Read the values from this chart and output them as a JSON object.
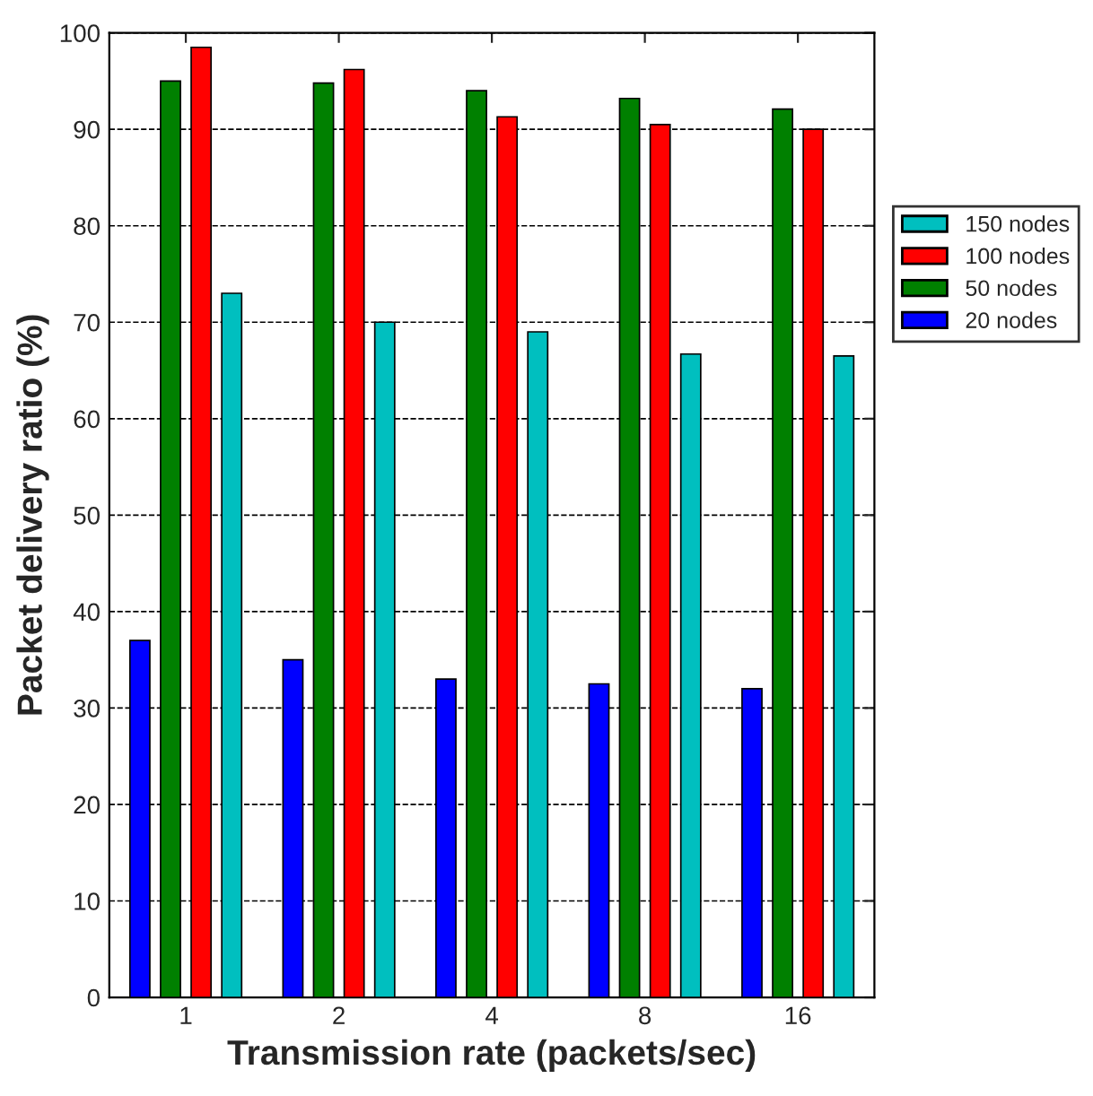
{
  "chart_data": {
    "type": "bar",
    "xlabel": "Transmission rate (packets/sec)",
    "ylabel": "Packet delivery ratio (%)",
    "categories": [
      "1",
      "2",
      "4",
      "8",
      "16"
    ],
    "series": [
      {
        "name": "20 nodes",
        "color": "#0000ff",
        "values": [
          37,
          35,
          33,
          32.5,
          32
        ]
      },
      {
        "name": "50 nodes",
        "color": "#008000",
        "values": [
          95,
          94.8,
          94,
          93.2,
          92.1
        ]
      },
      {
        "name": "100 nodes",
        "color": "#ff0000",
        "values": [
          98.5,
          96.2,
          91.3,
          90.5,
          90
        ]
      },
      {
        "name": "150 nodes",
        "color": "#00bfbf",
        "values": [
          73,
          70,
          69,
          66.7,
          66.5
        ]
      }
    ],
    "ylim": [
      0,
      100
    ],
    "yticks": [
      0,
      10,
      20,
      30,
      40,
      50,
      60,
      70,
      80,
      90,
      100
    ],
    "grid": "y",
    "line_style": "dashed",
    "legend": "right"
  }
}
